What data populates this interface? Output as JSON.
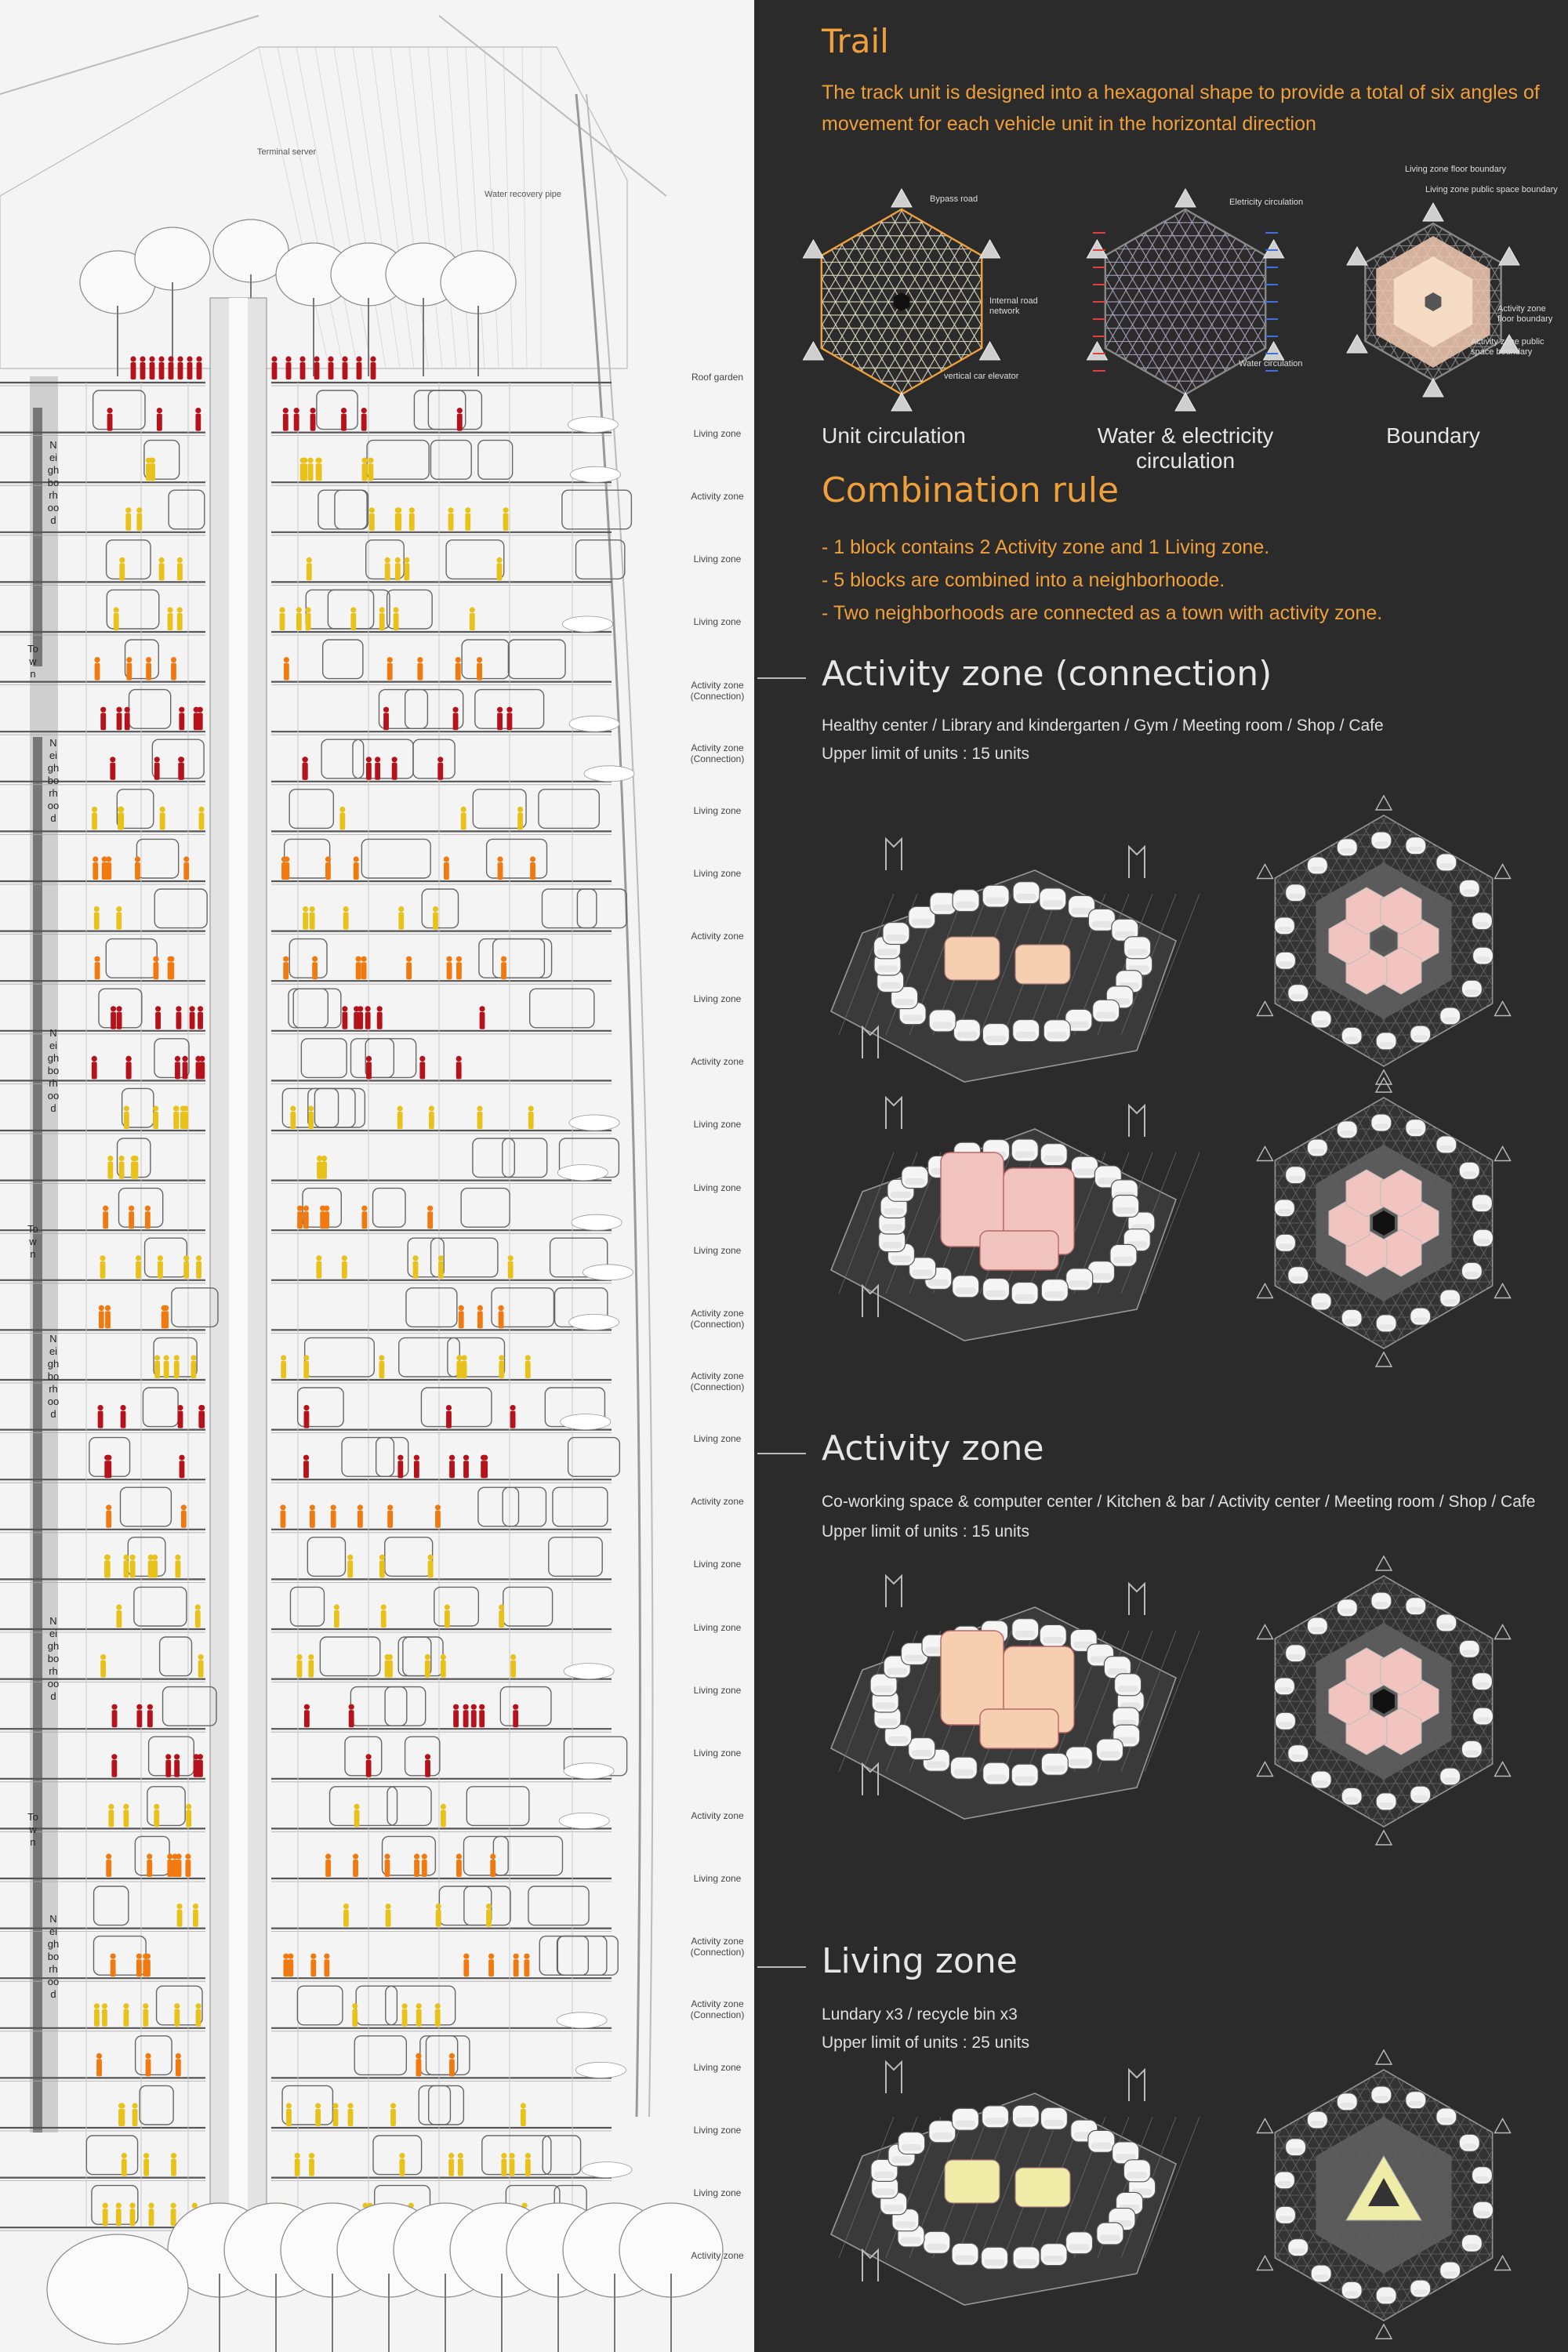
{
  "section": {
    "annotations": {
      "terminal_server": "Terminal server",
      "water_recovery_pipe": "Water recovery pipe",
      "roof_garden": "Roof garden"
    },
    "zone_labels": [
      "Living zone",
      "Activity zone",
      "Living zone",
      "Living zone",
      "Activity zone (Connection)",
      "Activity zone (Connection)",
      "Living zone",
      "Living zone",
      "Activity zone",
      "Living zone",
      "Activity zone",
      "Living zone",
      "Living zone",
      "Living zone",
      "Activity zone (Connection)",
      "Activity zone (Connection)",
      "Living zone",
      "Activity zone",
      "Living zone",
      "Living zone",
      "Living zone",
      "Living zone",
      "Activity zone",
      "Living zone",
      "Activity zone (Connection)",
      "Activity zone (Connection)",
      "Living zone",
      "Living zone",
      "Living zone",
      "Activity zone"
    ],
    "vertical_labels": {
      "neighborhood": "Neighborhood",
      "town": "Town"
    }
  },
  "trail": {
    "title": "Trail",
    "description": "The track unit is designed into a hexagonal shape to provide a total of six angles of movement for each vehicle unit in the horizontal direction",
    "diagrams": [
      {
        "caption": "Unit circulation",
        "labels": [
          "Bypass road",
          "Internal road network",
          "vertical car elevator"
        ]
      },
      {
        "caption": "Water & electricity circulation",
        "labels": [
          "Eletricity circulation",
          "Water circulation"
        ]
      },
      {
        "caption": "Boundary",
        "labels": [
          "Living zone floor boundary",
          "Living zone public space boundary",
          "Activity zone floor boundary",
          "Activity zone public space boundary"
        ]
      }
    ]
  },
  "combination": {
    "title": "Combination rule",
    "rules": [
      "- 1 block contains 2 Activity zone and 1 Living zone.",
      "- 5 blocks are combined into a neighborhoode.",
      "- Two neighborhoods are connected as a town with activity zone."
    ]
  },
  "zones": [
    {
      "title": "Activity zone (connection)",
      "facilities": "Healthy center / Library and kindergarten / Gym / Meeting room / Shop / Cafe",
      "limit": "Upper limit of units : 15 units"
    },
    {
      "title": "Activity zone",
      "facilities": "Co-working space & computer center / Kitchen & bar / Activity center / Meeting room / Shop / Cafe",
      "limit": "Upper limit of units : 15 units"
    },
    {
      "title": "Living zone",
      "facilities": "Lundary x3 / recycle bin x3",
      "limit": "Upper limit of units : 25 units"
    }
  ],
  "colors": {
    "panel": "#2b2b2b",
    "orange_text": "#f0a03a",
    "person_red": "#b5121b",
    "person_yellow": "#e8c21a",
    "person_orange": "#f07a10",
    "pink": "#f2c4c0",
    "peach": "#f5cfb0",
    "lightyellow": "#efeca8"
  }
}
